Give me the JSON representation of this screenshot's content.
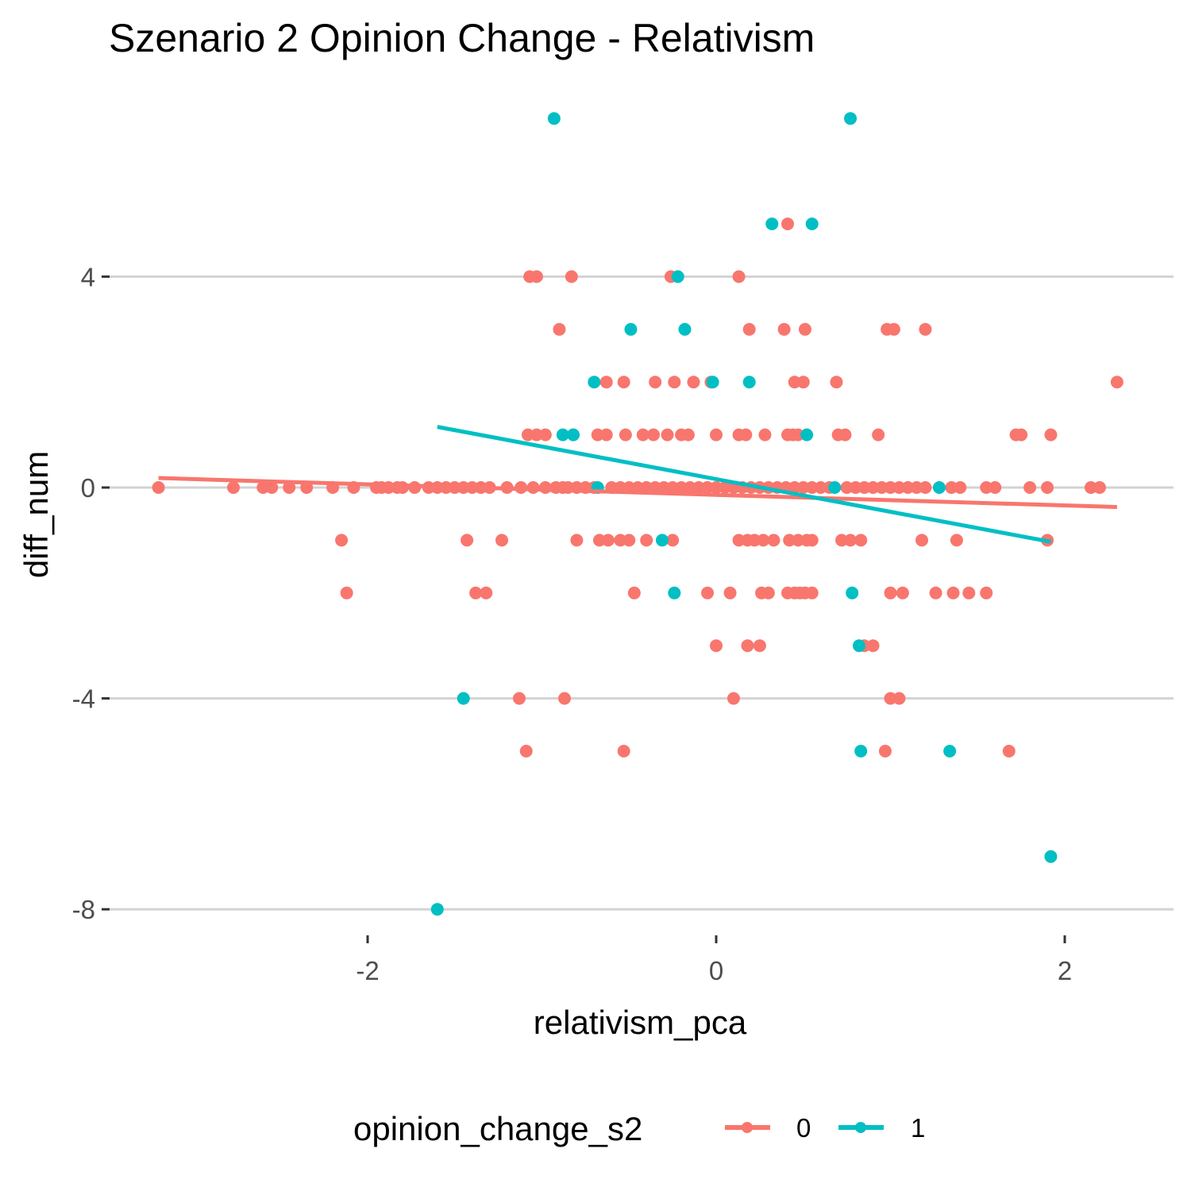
{
  "chart_data": {
    "type": "scatter",
    "title": "Szenario 2 Opinion Change - Relativism",
    "xlabel": "relativism_pca",
    "ylabel": "diff_num",
    "xlim": [
      -3.35,
      2.35
    ],
    "ylim": [
      -8.5,
      7.0
    ],
    "x_ticks": [
      -2,
      0,
      2
    ],
    "x_tick_labels": [
      "-2",
      "0",
      "2"
    ],
    "y_ticks": [
      -8,
      -4,
      0,
      4
    ],
    "y_tick_labels": [
      "-8",
      "-4",
      "0",
      "4"
    ],
    "grid": "horizontal major lines only",
    "legend": {
      "title": "opinion_change_s2",
      "placement": "bottom",
      "entries": [
        "0",
        "1"
      ]
    },
    "series": [
      {
        "name": "0",
        "color": "#F8766D",
        "points": [
          [
            -3.2,
            0
          ],
          [
            -2.77,
            0
          ],
          [
            -2.6,
            0
          ],
          [
            -2.55,
            0
          ],
          [
            -2.45,
            0
          ],
          [
            -2.35,
            0
          ],
          [
            -2.2,
            0
          ],
          [
            -2.08,
            0
          ],
          [
            -1.95,
            0
          ],
          [
            -1.92,
            0
          ],
          [
            -1.88,
            0
          ],
          [
            -1.83,
            0
          ],
          [
            -1.8,
            0
          ],
          [
            -1.73,
            0
          ],
          [
            -1.65,
            0
          ],
          [
            -1.6,
            0
          ],
          [
            -1.55,
            0
          ],
          [
            -1.5,
            0
          ],
          [
            -1.45,
            0
          ],
          [
            -1.4,
            0
          ],
          [
            -1.35,
            0
          ],
          [
            -1.3,
            0
          ],
          [
            -1.2,
            0
          ],
          [
            -1.12,
            0
          ],
          [
            -1.05,
            0
          ],
          [
            -0.98,
            0
          ],
          [
            -0.92,
            0
          ],
          [
            -0.88,
            0
          ],
          [
            -0.85,
            0
          ],
          [
            -0.8,
            0
          ],
          [
            -0.75,
            0
          ],
          [
            -0.7,
            0
          ],
          [
            -0.6,
            0
          ],
          [
            -0.55,
            0
          ],
          [
            -0.5,
            0
          ],
          [
            -0.45,
            0
          ],
          [
            -0.4,
            0
          ],
          [
            -0.35,
            0
          ],
          [
            -0.3,
            0
          ],
          [
            -0.25,
            0
          ],
          [
            -0.2,
            0
          ],
          [
            -0.15,
            0
          ],
          [
            -0.1,
            0
          ],
          [
            -0.05,
            0
          ],
          [
            0,
            0
          ],
          [
            0.05,
            0
          ],
          [
            0.1,
            0
          ],
          [
            0.15,
            0
          ],
          [
            0.2,
            0
          ],
          [
            0.25,
            0
          ],
          [
            0.3,
            0
          ],
          [
            0.35,
            0
          ],
          [
            0.4,
            0
          ],
          [
            0.45,
            0
          ],
          [
            0.5,
            0
          ],
          [
            0.55,
            0
          ],
          [
            0.6,
            0
          ],
          [
            0.65,
            0
          ],
          [
            0.75,
            0
          ],
          [
            0.8,
            0
          ],
          [
            0.85,
            0
          ],
          [
            0.9,
            0
          ],
          [
            0.95,
            0
          ],
          [
            1.0,
            0
          ],
          [
            1.05,
            0
          ],
          [
            1.1,
            0
          ],
          [
            1.15,
            0
          ],
          [
            1.2,
            0
          ],
          [
            1.35,
            0
          ],
          [
            1.4,
            0
          ],
          [
            1.55,
            0
          ],
          [
            1.6,
            0
          ],
          [
            1.8,
            0
          ],
          [
            1.9,
            0
          ],
          [
            2.15,
            0
          ],
          [
            2.2,
            0
          ],
          [
            -2.15,
            -1
          ],
          [
            -1.43,
            -1
          ],
          [
            -1.23,
            -1
          ],
          [
            -0.8,
            -1
          ],
          [
            -0.67,
            -1
          ],
          [
            -0.62,
            -1
          ],
          [
            -0.55,
            -1
          ],
          [
            -0.5,
            -1
          ],
          [
            -0.4,
            -1
          ],
          [
            -0.25,
            -1
          ],
          [
            0.13,
            -1
          ],
          [
            0.18,
            -1
          ],
          [
            0.22,
            -1
          ],
          [
            0.27,
            -1
          ],
          [
            0.33,
            -1
          ],
          [
            0.42,
            -1
          ],
          [
            0.47,
            -1
          ],
          [
            0.52,
            -1
          ],
          [
            0.55,
            -1
          ],
          [
            0.72,
            -1
          ],
          [
            0.77,
            -1
          ],
          [
            0.83,
            -1
          ],
          [
            1.18,
            -1
          ],
          [
            1.38,
            -1
          ],
          [
            1.9,
            -1
          ],
          [
            -2.12,
            -2
          ],
          [
            -1.38,
            -2
          ],
          [
            -1.32,
            -2
          ],
          [
            -0.47,
            -2
          ],
          [
            -0.05,
            -2
          ],
          [
            0.08,
            -2
          ],
          [
            0.26,
            -2
          ],
          [
            0.3,
            -2
          ],
          [
            0.41,
            -2
          ],
          [
            0.45,
            -2
          ],
          [
            0.48,
            -2
          ],
          [
            0.51,
            -2
          ],
          [
            0.55,
            -2
          ],
          [
            1.0,
            -2
          ],
          [
            1.07,
            -2
          ],
          [
            1.26,
            -2
          ],
          [
            1.36,
            -2
          ],
          [
            1.45,
            -2
          ],
          [
            1.55,
            -2
          ],
          [
            0,
            -3
          ],
          [
            0.18,
            -3
          ],
          [
            0.25,
            -3
          ],
          [
            0.85,
            -3
          ],
          [
            0.9,
            -3
          ],
          [
            -1.13,
            -4
          ],
          [
            -0.87,
            -4
          ],
          [
            0.1,
            -4
          ],
          [
            1.0,
            -4
          ],
          [
            1.05,
            -4
          ],
          [
            -1.09,
            -5
          ],
          [
            -0.53,
            -5
          ],
          [
            0.97,
            -5
          ],
          [
            1.68,
            -5
          ],
          [
            -1.08,
            1
          ],
          [
            -1.03,
            1
          ],
          [
            -0.98,
            1
          ],
          [
            -0.82,
            1
          ],
          [
            -0.68,
            1
          ],
          [
            -0.63,
            1
          ],
          [
            -0.52,
            1
          ],
          [
            -0.42,
            1
          ],
          [
            -0.36,
            1
          ],
          [
            -0.28,
            1
          ],
          [
            -0.2,
            1
          ],
          [
            -0.16,
            1
          ],
          [
            0,
            1
          ],
          [
            0.13,
            1
          ],
          [
            0.17,
            1
          ],
          [
            0.28,
            1
          ],
          [
            0.41,
            1
          ],
          [
            0.44,
            1
          ],
          [
            0.47,
            1
          ],
          [
            0.7,
            1
          ],
          [
            0.74,
            1
          ],
          [
            0.93,
            1
          ],
          [
            1.72,
            1
          ],
          [
            1.75,
            1
          ],
          [
            1.92,
            1
          ],
          [
            -0.63,
            2
          ],
          [
            -0.53,
            2
          ],
          [
            -0.35,
            2
          ],
          [
            -0.24,
            2
          ],
          [
            -0.13,
            2
          ],
          [
            -0.03,
            2
          ],
          [
            0.45,
            2
          ],
          [
            0.5,
            2
          ],
          [
            0.69,
            2
          ],
          [
            2.3,
            2
          ],
          [
            -0.9,
            3
          ],
          [
            0.19,
            3
          ],
          [
            0.39,
            3
          ],
          [
            0.51,
            3
          ],
          [
            0.98,
            3
          ],
          [
            1.02,
            3
          ],
          [
            1.2,
            3
          ],
          [
            -1.07,
            4
          ],
          [
            -1.03,
            4
          ],
          [
            -0.83,
            4
          ],
          [
            -0.26,
            4
          ],
          [
            0.13,
            4
          ],
          [
            0.41,
            5
          ]
        ]
      },
      {
        "name": "1",
        "color": "#00BFC4",
        "points": [
          [
            -0.93,
            7
          ],
          [
            0.77,
            7
          ],
          [
            0.32,
            5
          ],
          [
            0.55,
            5
          ],
          [
            -0.22,
            4
          ],
          [
            -0.49,
            3
          ],
          [
            -0.18,
            3
          ],
          [
            -0.7,
            2
          ],
          [
            -0.02,
            2
          ],
          [
            0.19,
            2
          ],
          [
            -0.88,
            1
          ],
          [
            -0.82,
            1
          ],
          [
            0.52,
            1
          ],
          [
            -0.68,
            0
          ],
          [
            0.68,
            0
          ],
          [
            1.28,
            0
          ],
          [
            -0.31,
            -1
          ],
          [
            -0.24,
            -2
          ],
          [
            0.78,
            -2
          ],
          [
            0.82,
            -3
          ],
          [
            -1.45,
            -4
          ],
          [
            0.83,
            -5
          ],
          [
            1.34,
            -5
          ],
          [
            1.92,
            -7
          ],
          [
            -1.6,
            -8
          ]
        ]
      }
    ],
    "trend_lines": [
      {
        "series": "0",
        "x": [
          -3.2,
          2.3
        ],
        "y": [
          0.18,
          -0.37
        ]
      },
      {
        "series": "1",
        "x": [
          -1.6,
          1.92
        ],
        "y": [
          1.15,
          -1.03
        ]
      }
    ]
  }
}
